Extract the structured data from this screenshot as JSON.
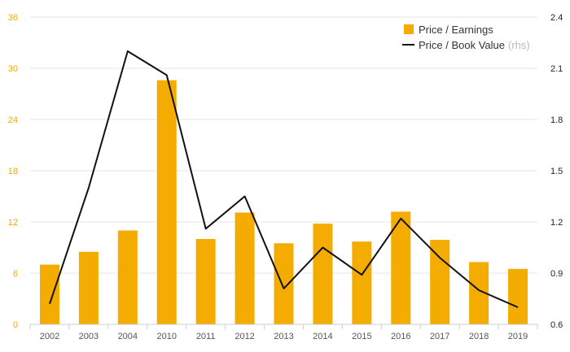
{
  "chart_data": {
    "type": "bar+line",
    "categories": [
      "2002",
      "2003",
      "2004",
      "2010",
      "2011",
      "2012",
      "2013",
      "2014",
      "2015",
      "2016",
      "2017",
      "2018",
      "2019"
    ],
    "series": [
      {
        "name": "Price / Earnings",
        "type": "bar",
        "axis": "left",
        "values": [
          7.0,
          8.5,
          11.0,
          28.6,
          10.0,
          13.1,
          9.5,
          11.8,
          9.7,
          13.2,
          9.9,
          7.3,
          6.5
        ]
      },
      {
        "name": "Price / Book Value",
        "type": "line",
        "axis": "right",
        "values": [
          0.72,
          1.4,
          2.2,
          2.06,
          1.16,
          1.35,
          0.81,
          1.05,
          0.89,
          1.22,
          0.99,
          0.8,
          0.7
        ]
      }
    ],
    "legend": {
      "bar_label": "Price / Earnings",
      "line_label": "Price / Book Value",
      "line_suffix": "(rhs)",
      "position": "top-right"
    },
    "y_left": {
      "ylim": [
        0,
        36
      ],
      "ticks": [
        "0",
        "6",
        "12",
        "18",
        "24",
        "30",
        "36"
      ]
    },
    "y_right": {
      "ylim": [
        0.6,
        2.4
      ],
      "ticks": [
        "0.6",
        "0.9",
        "1.2",
        "1.5",
        "1.8",
        "2.1",
        "2.4"
      ]
    },
    "grid": true,
    "colors": {
      "bar": "#f5ac00",
      "line": "#111111",
      "grid": "#e6e6e6",
      "left_tick": "#f2a900"
    }
  }
}
